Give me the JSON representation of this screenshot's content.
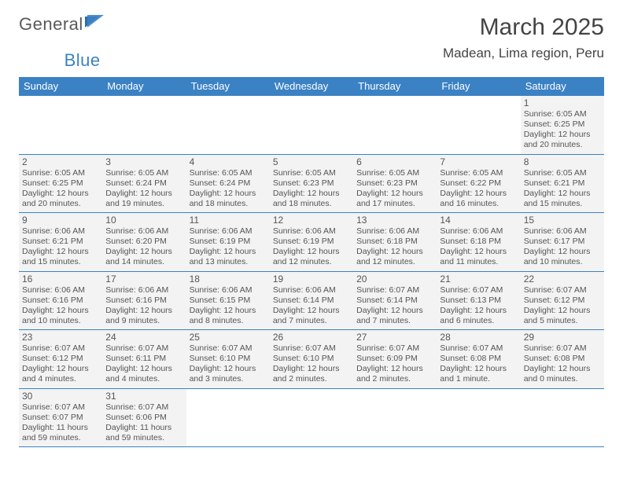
{
  "logo": {
    "text1": "General",
    "text2": "Blue"
  },
  "header": {
    "month_title": "March 2025",
    "location": "Madean, Lima region, Peru"
  },
  "calendar": {
    "day_headers": [
      "Sunday",
      "Monday",
      "Tuesday",
      "Wednesday",
      "Thursday",
      "Friday",
      "Saturday"
    ],
    "header_bg": "#3b82c4",
    "header_fg": "#ffffff",
    "cell_bg": "#f3f3f3",
    "border_color": "#3b82c4",
    "start_day_index": 6,
    "days": [
      {
        "n": "1",
        "sunrise": "Sunrise: 6:05 AM",
        "sunset": "Sunset: 6:25 PM",
        "daylight1": "Daylight: 12 hours",
        "daylight2": "and 20 minutes."
      },
      {
        "n": "2",
        "sunrise": "Sunrise: 6:05 AM",
        "sunset": "Sunset: 6:25 PM",
        "daylight1": "Daylight: 12 hours",
        "daylight2": "and 20 minutes."
      },
      {
        "n": "3",
        "sunrise": "Sunrise: 6:05 AM",
        "sunset": "Sunset: 6:24 PM",
        "daylight1": "Daylight: 12 hours",
        "daylight2": "and 19 minutes."
      },
      {
        "n": "4",
        "sunrise": "Sunrise: 6:05 AM",
        "sunset": "Sunset: 6:24 PM",
        "daylight1": "Daylight: 12 hours",
        "daylight2": "and 18 minutes."
      },
      {
        "n": "5",
        "sunrise": "Sunrise: 6:05 AM",
        "sunset": "Sunset: 6:23 PM",
        "daylight1": "Daylight: 12 hours",
        "daylight2": "and 18 minutes."
      },
      {
        "n": "6",
        "sunrise": "Sunrise: 6:05 AM",
        "sunset": "Sunset: 6:23 PM",
        "daylight1": "Daylight: 12 hours",
        "daylight2": "and 17 minutes."
      },
      {
        "n": "7",
        "sunrise": "Sunrise: 6:05 AM",
        "sunset": "Sunset: 6:22 PM",
        "daylight1": "Daylight: 12 hours",
        "daylight2": "and 16 minutes."
      },
      {
        "n": "8",
        "sunrise": "Sunrise: 6:05 AM",
        "sunset": "Sunset: 6:21 PM",
        "daylight1": "Daylight: 12 hours",
        "daylight2": "and 15 minutes."
      },
      {
        "n": "9",
        "sunrise": "Sunrise: 6:06 AM",
        "sunset": "Sunset: 6:21 PM",
        "daylight1": "Daylight: 12 hours",
        "daylight2": "and 15 minutes."
      },
      {
        "n": "10",
        "sunrise": "Sunrise: 6:06 AM",
        "sunset": "Sunset: 6:20 PM",
        "daylight1": "Daylight: 12 hours",
        "daylight2": "and 14 minutes."
      },
      {
        "n": "11",
        "sunrise": "Sunrise: 6:06 AM",
        "sunset": "Sunset: 6:19 PM",
        "daylight1": "Daylight: 12 hours",
        "daylight2": "and 13 minutes."
      },
      {
        "n": "12",
        "sunrise": "Sunrise: 6:06 AM",
        "sunset": "Sunset: 6:19 PM",
        "daylight1": "Daylight: 12 hours",
        "daylight2": "and 12 minutes."
      },
      {
        "n": "13",
        "sunrise": "Sunrise: 6:06 AM",
        "sunset": "Sunset: 6:18 PM",
        "daylight1": "Daylight: 12 hours",
        "daylight2": "and 12 minutes."
      },
      {
        "n": "14",
        "sunrise": "Sunrise: 6:06 AM",
        "sunset": "Sunset: 6:18 PM",
        "daylight1": "Daylight: 12 hours",
        "daylight2": "and 11 minutes."
      },
      {
        "n": "15",
        "sunrise": "Sunrise: 6:06 AM",
        "sunset": "Sunset: 6:17 PM",
        "daylight1": "Daylight: 12 hours",
        "daylight2": "and 10 minutes."
      },
      {
        "n": "16",
        "sunrise": "Sunrise: 6:06 AM",
        "sunset": "Sunset: 6:16 PM",
        "daylight1": "Daylight: 12 hours",
        "daylight2": "and 10 minutes."
      },
      {
        "n": "17",
        "sunrise": "Sunrise: 6:06 AM",
        "sunset": "Sunset: 6:16 PM",
        "daylight1": "Daylight: 12 hours",
        "daylight2": "and 9 minutes."
      },
      {
        "n": "18",
        "sunrise": "Sunrise: 6:06 AM",
        "sunset": "Sunset: 6:15 PM",
        "daylight1": "Daylight: 12 hours",
        "daylight2": "and 8 minutes."
      },
      {
        "n": "19",
        "sunrise": "Sunrise: 6:06 AM",
        "sunset": "Sunset: 6:14 PM",
        "daylight1": "Daylight: 12 hours",
        "daylight2": "and 7 minutes."
      },
      {
        "n": "20",
        "sunrise": "Sunrise: 6:07 AM",
        "sunset": "Sunset: 6:14 PM",
        "daylight1": "Daylight: 12 hours",
        "daylight2": "and 7 minutes."
      },
      {
        "n": "21",
        "sunrise": "Sunrise: 6:07 AM",
        "sunset": "Sunset: 6:13 PM",
        "daylight1": "Daylight: 12 hours",
        "daylight2": "and 6 minutes."
      },
      {
        "n": "22",
        "sunrise": "Sunrise: 6:07 AM",
        "sunset": "Sunset: 6:12 PM",
        "daylight1": "Daylight: 12 hours",
        "daylight2": "and 5 minutes."
      },
      {
        "n": "23",
        "sunrise": "Sunrise: 6:07 AM",
        "sunset": "Sunset: 6:12 PM",
        "daylight1": "Daylight: 12 hours",
        "daylight2": "and 4 minutes."
      },
      {
        "n": "24",
        "sunrise": "Sunrise: 6:07 AM",
        "sunset": "Sunset: 6:11 PM",
        "daylight1": "Daylight: 12 hours",
        "daylight2": "and 4 minutes."
      },
      {
        "n": "25",
        "sunrise": "Sunrise: 6:07 AM",
        "sunset": "Sunset: 6:10 PM",
        "daylight1": "Daylight: 12 hours",
        "daylight2": "and 3 minutes."
      },
      {
        "n": "26",
        "sunrise": "Sunrise: 6:07 AM",
        "sunset": "Sunset: 6:10 PM",
        "daylight1": "Daylight: 12 hours",
        "daylight2": "and 2 minutes."
      },
      {
        "n": "27",
        "sunrise": "Sunrise: 6:07 AM",
        "sunset": "Sunset: 6:09 PM",
        "daylight1": "Daylight: 12 hours",
        "daylight2": "and 2 minutes."
      },
      {
        "n": "28",
        "sunrise": "Sunrise: 6:07 AM",
        "sunset": "Sunset: 6:08 PM",
        "daylight1": "Daylight: 12 hours",
        "daylight2": "and 1 minute."
      },
      {
        "n": "29",
        "sunrise": "Sunrise: 6:07 AM",
        "sunset": "Sunset: 6:08 PM",
        "daylight1": "Daylight: 12 hours",
        "daylight2": "and 0 minutes."
      },
      {
        "n": "30",
        "sunrise": "Sunrise: 6:07 AM",
        "sunset": "Sunset: 6:07 PM",
        "daylight1": "Daylight: 11 hours",
        "daylight2": "and 59 minutes."
      },
      {
        "n": "31",
        "sunrise": "Sunrise: 6:07 AM",
        "sunset": "Sunset: 6:06 PM",
        "daylight1": "Daylight: 11 hours",
        "daylight2": "and 59 minutes."
      }
    ]
  }
}
